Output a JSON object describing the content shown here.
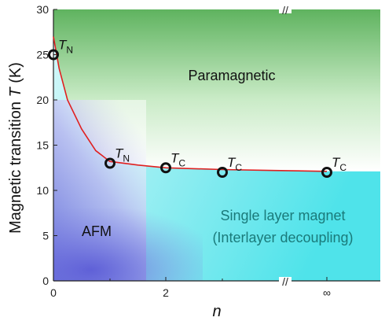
{
  "chart_data": {
    "type": "scatter",
    "title": "",
    "xlabel": "n",
    "ylabel_main": "Magnetic transition ",
    "ylabel_symbol": "T",
    "ylabel_unit": " (K)",
    "ylim": [
      0,
      30
    ],
    "x_ticks": [
      "0",
      "2",
      "∞"
    ],
    "y_ticks": [
      "0",
      "5",
      "10",
      "15",
      "20",
      "25",
      "30"
    ],
    "x_break_symbol": "//",
    "points": [
      {
        "n": "0",
        "T": 25,
        "label": "T",
        "sub": "N"
      },
      {
        "n": "1",
        "T": 13,
        "label": "T",
        "sub": "N"
      },
      {
        "n": "2",
        "T": 12.5,
        "label": "T",
        "sub": "C"
      },
      {
        "n": "3",
        "T": 12,
        "label": "T",
        "sub": "C"
      },
      {
        "n": "∞",
        "T": 12,
        "label": "T",
        "sub": "C"
      }
    ],
    "fit_curve": [
      {
        "n": 0,
        "T": 27
      },
      {
        "n": 0.1,
        "T": 23.5
      },
      {
        "n": 0.25,
        "T": 20
      },
      {
        "n": 0.5,
        "T": 16.8
      },
      {
        "n": 0.75,
        "T": 14.4
      },
      {
        "n": 1,
        "T": 13.2
      },
      {
        "n": 1.5,
        "T": 12.8
      },
      {
        "n": 2,
        "T": 12.5
      },
      {
        "n": 3,
        "T": 12.3
      },
      {
        "n": 4,
        "T": 12.2
      },
      {
        "n": 5,
        "T": 12.1
      }
    ],
    "regions": {
      "paramagnetic": "Paramagnetic",
      "afm": "AFM",
      "single_layer_line1": "Single layer magnet",
      "single_layer_line2": "(Interlayer decoupling)"
    },
    "colors": {
      "fit_line": "#e02020",
      "marker_edge": "#111111",
      "paramagnetic_top": "#5fb35f",
      "afm": "#5b5bd6",
      "single_layer": "#4fe3ea",
      "single_layer_text": "#1a7a7a",
      "afm_text": "#111111"
    }
  }
}
